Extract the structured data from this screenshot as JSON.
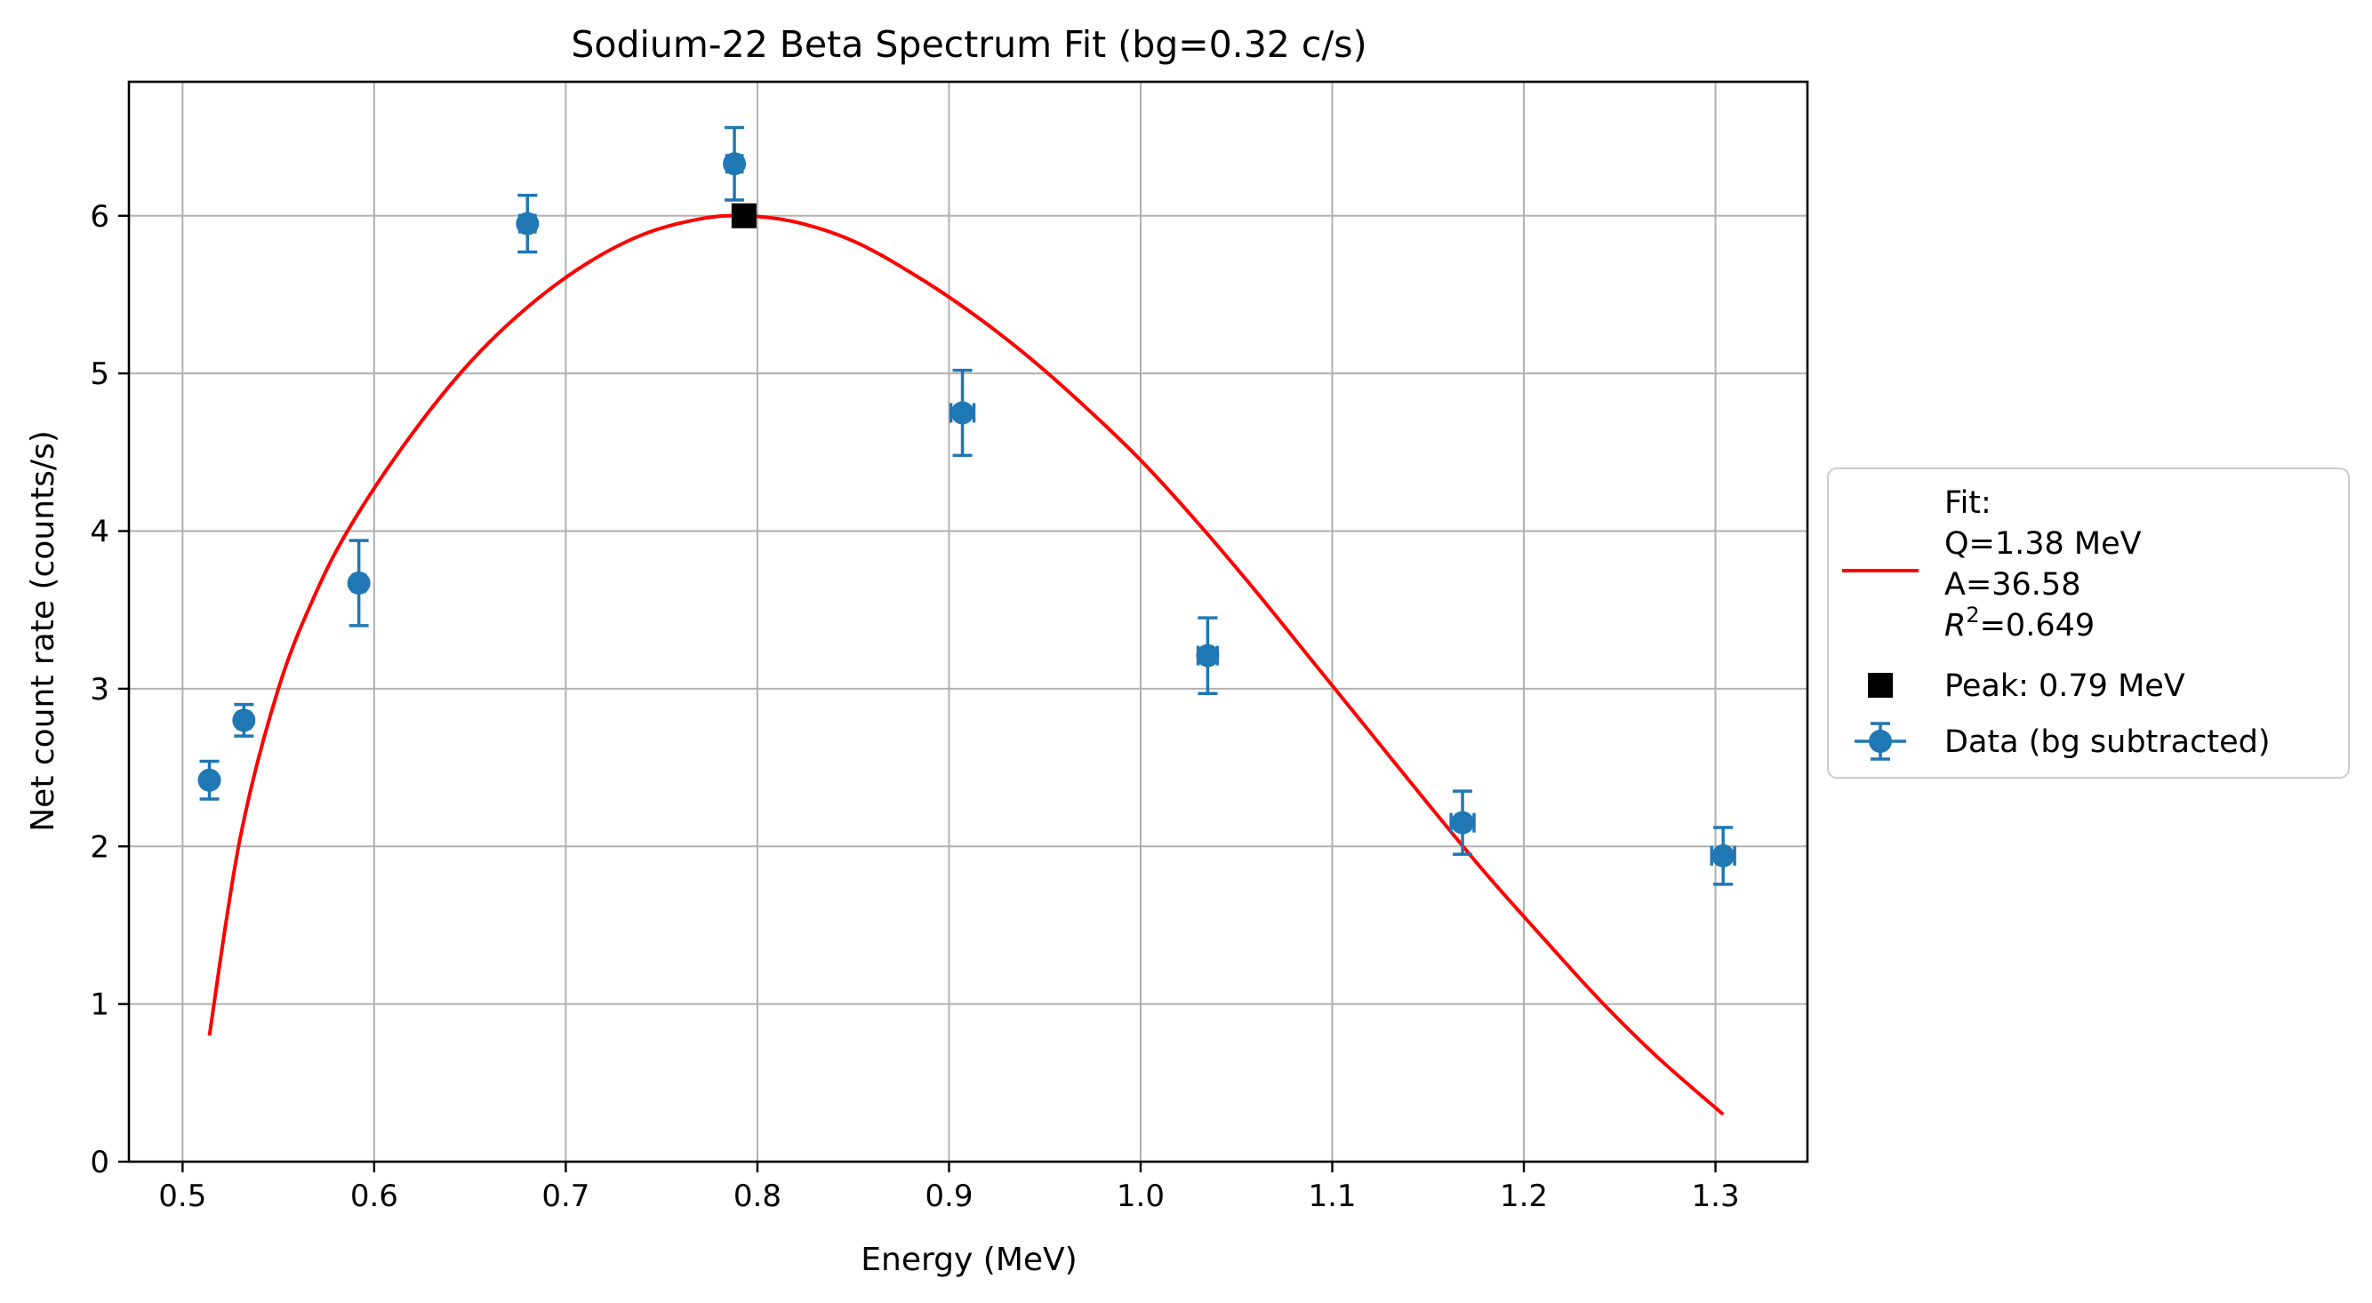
{
  "chart_data": {
    "type": "scatter",
    "title": "Sodium-22 Beta Spectrum Fit (bg=0.32 c/s)",
    "xlabel": "Energy (MeV)",
    "ylabel": "Net count rate (counts/s)",
    "xlim": [
      0.472,
      1.348
    ],
    "ylim": [
      0,
      6.85
    ],
    "x_ticks": [
      0.5,
      0.6,
      0.7,
      0.8,
      0.9,
      1.0,
      1.1,
      1.2,
      1.3
    ],
    "x_tick_labels": [
      "0.5",
      "0.6",
      "0.7",
      "0.8",
      "0.9",
      "1.0",
      "1.1",
      "1.2",
      "1.3"
    ],
    "y_ticks": [
      0,
      1,
      2,
      3,
      4,
      5,
      6
    ],
    "y_tick_labels": [
      "0",
      "1",
      "2",
      "3",
      "4",
      "5",
      "6"
    ],
    "grid": true,
    "legend_position": "outside right",
    "series": [
      {
        "name": "Data (bg subtracted)",
        "kind": "errorbar",
        "color": "#1f77b4",
        "x": [
          0.514,
          0.532,
          0.592,
          0.68,
          0.788,
          0.907,
          1.035,
          1.168,
          1.304
        ],
        "y": [
          2.42,
          2.8,
          3.67,
          5.95,
          6.33,
          4.75,
          3.21,
          2.15,
          1.94
        ],
        "yerr": [
          0.12,
          0.1,
          0.27,
          0.18,
          0.23,
          0.27,
          0.24,
          0.2,
          0.18
        ],
        "xerr": [
          0.002,
          0.003,
          0.003,
          0.004,
          0.004,
          0.006,
          0.005,
          0.006,
          0.006
        ]
      },
      {
        "name": "Fit:\nQ=1.38 MeV\nA=36.58\n$R^2$=0.649",
        "kind": "line",
        "color": "#ff0000",
        "x": [
          0.514,
          0.53,
          0.55,
          0.57,
          0.59,
          0.62,
          0.65,
          0.68,
          0.71,
          0.74,
          0.77,
          0.793,
          0.82,
          0.85,
          0.88,
          0.91,
          0.94,
          0.97,
          1.0,
          1.03,
          1.06,
          1.09,
          1.12,
          1.15,
          1.18,
          1.21,
          1.24,
          1.27,
          1.304
        ],
        "y": [
          0.8,
          2.05,
          3.0,
          3.62,
          4.08,
          4.62,
          5.07,
          5.42,
          5.69,
          5.88,
          5.98,
          6.0,
          5.96,
          5.84,
          5.64,
          5.4,
          5.12,
          4.8,
          4.45,
          4.05,
          3.62,
          3.17,
          2.72,
          2.27,
          1.83,
          1.42,
          1.02,
          0.66,
          0.3
        ]
      },
      {
        "name": "Peak: 0.79 MeV",
        "kind": "marker",
        "color": "#000000",
        "x": [
          0.793
        ],
        "y": [
          6.0
        ]
      }
    ],
    "legend": {
      "fit_lines": [
        "Fit:",
        "Q=1.38 MeV",
        "A=36.58"
      ],
      "r2_symbol": "R",
      "r2_superscript": "2",
      "r2_value": "=0.649",
      "peak_label": "Peak: 0.79 MeV",
      "data_label": "Data (bg subtracted)"
    }
  }
}
